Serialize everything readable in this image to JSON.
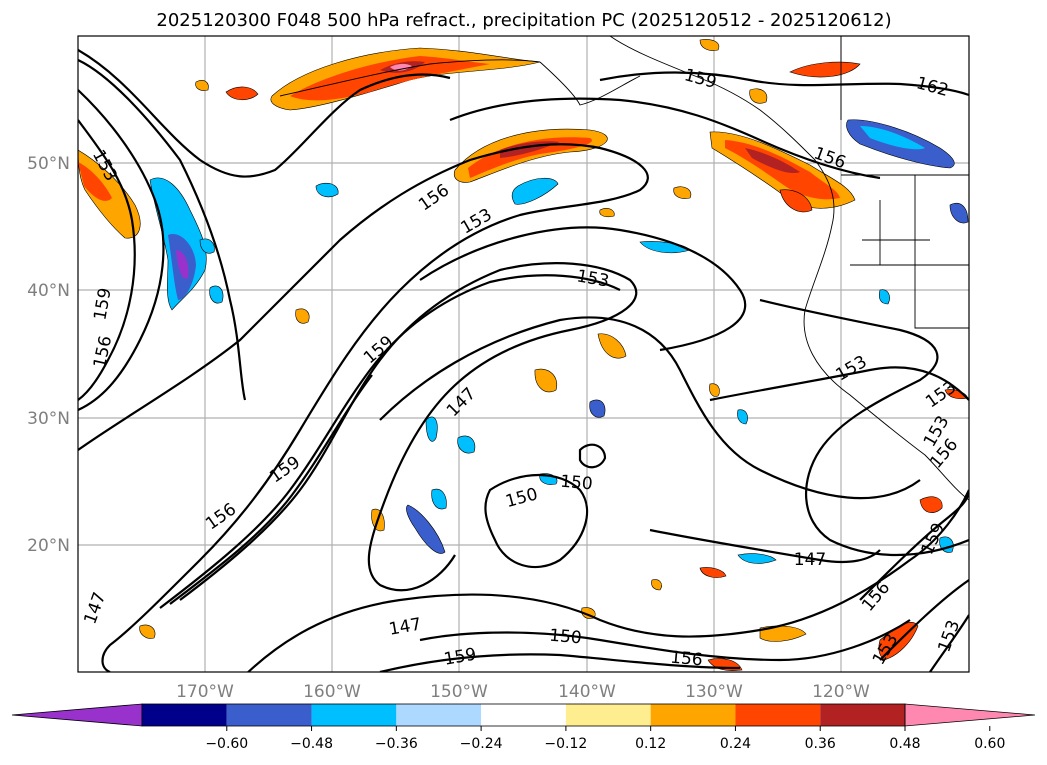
{
  "title": "2025120300 F048 500 hPa refract., precipitation PC (2025120512 - 2025120612)",
  "map": {
    "lon_labels": [
      "170°W",
      "160°W",
      "150°W",
      "140°W",
      "130°W",
      "120°W"
    ],
    "lat_labels": [
      "50°N",
      "40°N",
      "30°N",
      "20°N"
    ],
    "contour_labels": [
      {
        "text": "153",
        "angle": 62
      },
      {
        "text": "159",
        "angle": -80
      },
      {
        "text": "156",
        "angle": -78
      },
      {
        "text": "147",
        "angle": -70
      },
      {
        "text": "156",
        "angle": -35
      },
      {
        "text": "153",
        "angle": -30
      },
      {
        "text": "153",
        "angle": 10
      },
      {
        "text": "159",
        "angle": -40
      },
      {
        "text": "147",
        "angle": -45
      },
      {
        "text": "159",
        "angle": -35
      },
      {
        "text": "156",
        "angle": -35
      },
      {
        "text": "150",
        "angle": -15
      },
      {
        "text": "150",
        "angle": 5
      },
      {
        "text": "147",
        "angle": 0
      },
      {
        "text": "147",
        "angle": -10
      },
      {
        "text": "150",
        "angle": 5
      },
      {
        "text": "159",
        "angle": -10
      },
      {
        "text": "156",
        "angle": 5
      },
      {
        "text": "159",
        "angle": 15
      },
      {
        "text": "156",
        "angle": 20
      },
      {
        "text": "162",
        "angle": 15
      },
      {
        "text": "153",
        "angle": -30
      },
      {
        "text": "153",
        "angle": -35
      },
      {
        "text": "156",
        "angle": -50
      },
      {
        "text": "153",
        "angle": -60
      },
      {
        "text": "159",
        "angle": -65
      },
      {
        "text": "156",
        "angle": -50
      },
      {
        "text": "153",
        "angle": -70
      },
      {
        "text": "153",
        "angle": -60
      }
    ]
  },
  "colorbar": {
    "ticks": [
      "−0.60",
      "−0.48",
      "−0.36",
      "−0.24",
      "−0.12",
      "0.12",
      "0.24",
      "0.36",
      "0.48",
      "0.60"
    ],
    "colors": [
      "#9932cc",
      "#00008b",
      "#3a5fcd",
      "#00bfff",
      "#add8ff",
      "#ffffff",
      "#ffee90",
      "#ffa500",
      "#ff4500",
      "#b22222",
      "#ff88b0"
    ]
  }
}
